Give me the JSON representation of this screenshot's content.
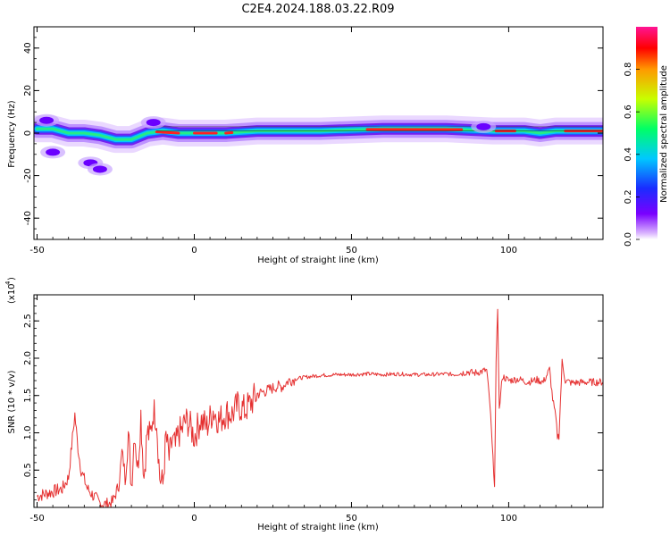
{
  "title": "C2E4.2024.188.03.22.R09",
  "colors": {
    "snr_line": "#e53030",
    "band_red": "#ff2020",
    "spectrum_stops": [
      "#ffffff",
      "#7a00ff",
      "#1a2cff",
      "#00c8ff",
      "#00ff66",
      "#c8ff00",
      "#ff9900",
      "#ff0000",
      "#ff1493"
    ]
  },
  "chart_data": [
    {
      "type": "heatmap",
      "xlabel": "Height of straight line (km)",
      "ylabel": "Frequency (Hz)",
      "xlim": [
        -51,
        130
      ],
      "ylim": [
        -50,
        50
      ],
      "xticks": [
        -50,
        0,
        50,
        100
      ],
      "yticks": [
        -40,
        -20,
        0,
        20,
        40
      ],
      "grid": false,
      "colorbar": {
        "label": "Normalized spectral amplitude",
        "range": [
          0.0,
          1.0
        ],
        "ticks": [
          0.0,
          0.2,
          0.4,
          0.6,
          0.8
        ]
      },
      "ridge_line": {
        "x": [
          -50,
          -45,
          -40,
          -35,
          -30,
          -25,
          -20,
          -15,
          -10,
          -5,
          0,
          5,
          10,
          20,
          40,
          60,
          80,
          95,
          105,
          110,
          115,
          120,
          130
        ],
        "freq": [
          2,
          2,
          0,
          0,
          -1,
          -3,
          -3,
          0,
          1,
          0,
          0,
          0,
          0,
          1,
          1,
          2,
          2,
          1,
          1,
          0,
          1,
          1,
          1
        ]
      },
      "blobs": [
        {
          "x": -33,
          "freq": -14,
          "level": 0.25
        },
        {
          "x": -30,
          "freq": -17,
          "level": 0.2
        },
        {
          "x": -45,
          "freq": -9,
          "level": 0.15
        },
        {
          "x": -47,
          "freq": 6,
          "level": 0.3
        },
        {
          "x": -13,
          "freq": 5,
          "level": 0.3
        },
        {
          "x": 92,
          "freq": 3,
          "level": 0.35
        }
      ]
    },
    {
      "type": "line",
      "xlabel": "Height of straight line (km)",
      "ylabel": "SNR (10 * v/v)",
      "yscale_label": "(x10",
      "yscale_exp": "4",
      "xlim": [
        -51,
        130
      ],
      "ylim": [
        0,
        28500
      ],
      "xticks": [
        -50,
        0,
        50,
        100
      ],
      "yticks": [
        0.5,
        1.0,
        1.5,
        2.0,
        2.5
      ],
      "ytick_labels": [
        "0.5",
        "1.0",
        "1.5",
        "2.0",
        "2.5"
      ],
      "grid": false,
      "series": [
        {
          "x": [
            -50,
            -46,
            -42,
            -40,
            -38,
            -37,
            -36,
            -34,
            -32,
            -30,
            -28,
            -26,
            -24,
            -23,
            -22,
            -21,
            -20,
            -19,
            -18,
            -17,
            -16,
            -15,
            -14,
            -13,
            -12,
            -11,
            -10,
            -9,
            -8,
            -7,
            -6,
            -5,
            -4,
            -3,
            -2,
            0,
            2,
            4,
            6,
            8,
            10,
            12,
            14,
            16,
            18,
            20,
            22,
            24,
            26,
            28,
            30,
            33,
            36,
            40,
            45,
            50,
            55,
            60,
            65,
            70,
            75,
            80,
            83,
            85,
            87,
            89,
            91,
            93,
            94,
            95,
            95.5,
            96,
            96.5,
            97,
            98,
            100,
            103,
            106,
            109,
            111,
            112,
            113,
            114,
            115,
            115.5,
            116,
            117,
            118,
            120,
            125,
            130
          ],
          "y": [
            1500,
            2000,
            2500,
            4000,
            12500,
            8000,
            5000,
            2500,
            1500,
            600,
            400,
            700,
            3000,
            7500,
            4500,
            10000,
            3000,
            10500,
            5000,
            12500,
            4000,
            10000,
            9500,
            13000,
            12000,
            4000,
            3000,
            9500,
            6500,
            9000,
            8000,
            10000,
            10200,
            11500,
            11500,
            9500,
            11800,
            10800,
            13000,
            11600,
            12700,
            12500,
            13700,
            13000,
            14000,
            15200,
            15500,
            15800,
            16200,
            16200,
            17000,
            17300,
            17500,
            17700,
            17800,
            17800,
            17900,
            17800,
            17900,
            17800,
            17800,
            17900,
            17800,
            18000,
            18200,
            18000,
            18200,
            18400,
            14000,
            6500,
            3200,
            19000,
            26800,
            13000,
            17600,
            17000,
            17200,
            16800,
            17100,
            16800,
            17600,
            18500,
            14500,
            12000,
            9500,
            9600,
            19500,
            17000,
            16700,
            16800,
            16800
          ]
        }
      ]
    }
  ]
}
